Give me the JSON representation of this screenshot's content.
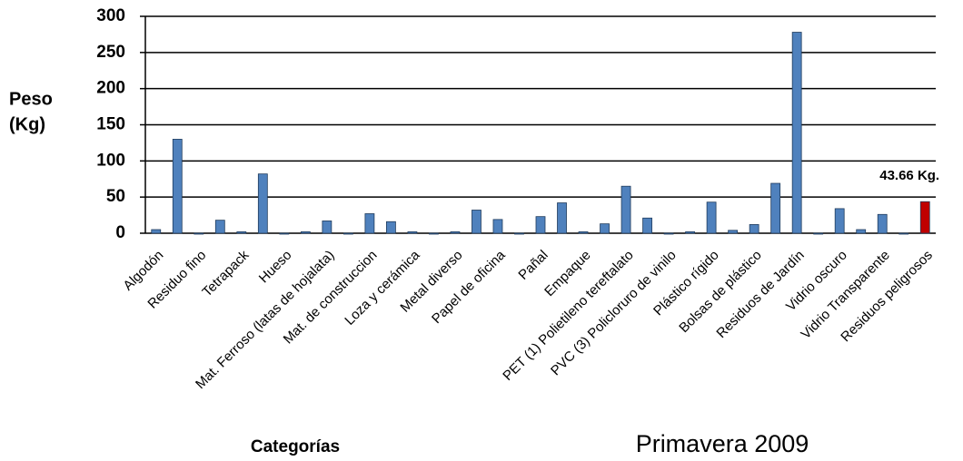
{
  "chart_data": {
    "type": "bar",
    "title": "Primavera 2009",
    "xlabel": "Categorías",
    "ylabel": [
      "Peso",
      "(Kg)"
    ],
    "categories": [
      "Algodón",
      null,
      "Residuo fino",
      null,
      "Tetrapack",
      null,
      "Hueso",
      null,
      "Mat. Ferroso (latas de hojalata)",
      null,
      "Mat. de construccion",
      null,
      "Loza y cerámica",
      null,
      "Metal diverso",
      null,
      "Papel de oficina",
      null,
      "Pañal",
      null,
      "Empaque",
      null,
      "PET (1) Polietileno tereftalato",
      null,
      "PVC (3) Policloruro de vinilo",
      null,
      "Plástico rígido",
      null,
      "Bolsas de plástico",
      null,
      "Residuos de Jardín",
      null,
      "Vidrio oscuro",
      null,
      "Vidrio Transparente",
      null,
      "Residuos peligrosos"
    ],
    "values": [
      5,
      130,
      0,
      18,
      2,
      82,
      0,
      2,
      17,
      0,
      27,
      16,
      2,
      0,
      2,
      32,
      19,
      0,
      23,
      42,
      2,
      13,
      65,
      21,
      0,
      2,
      43,
      4,
      12,
      69,
      278,
      0,
      34,
      5,
      26,
      0,
      43.66
    ],
    "value_labels": [
      null,
      null,
      null,
      null,
      null,
      null,
      null,
      null,
      null,
      null,
      null,
      null,
      null,
      null,
      null,
      null,
      null,
      null,
      null,
      null,
      null,
      null,
      null,
      null,
      null,
      null,
      null,
      null,
      null,
      null,
      null,
      null,
      null,
      null,
      null,
      null,
      "43.66 Kg."
    ],
    "color": "#4f81bd",
    "highlight_color": "#c00000",
    "ylim": [
      0,
      300
    ],
    "yticks": [
      0,
      50,
      100,
      150,
      200,
      250,
      300
    ],
    "grid": true
  }
}
